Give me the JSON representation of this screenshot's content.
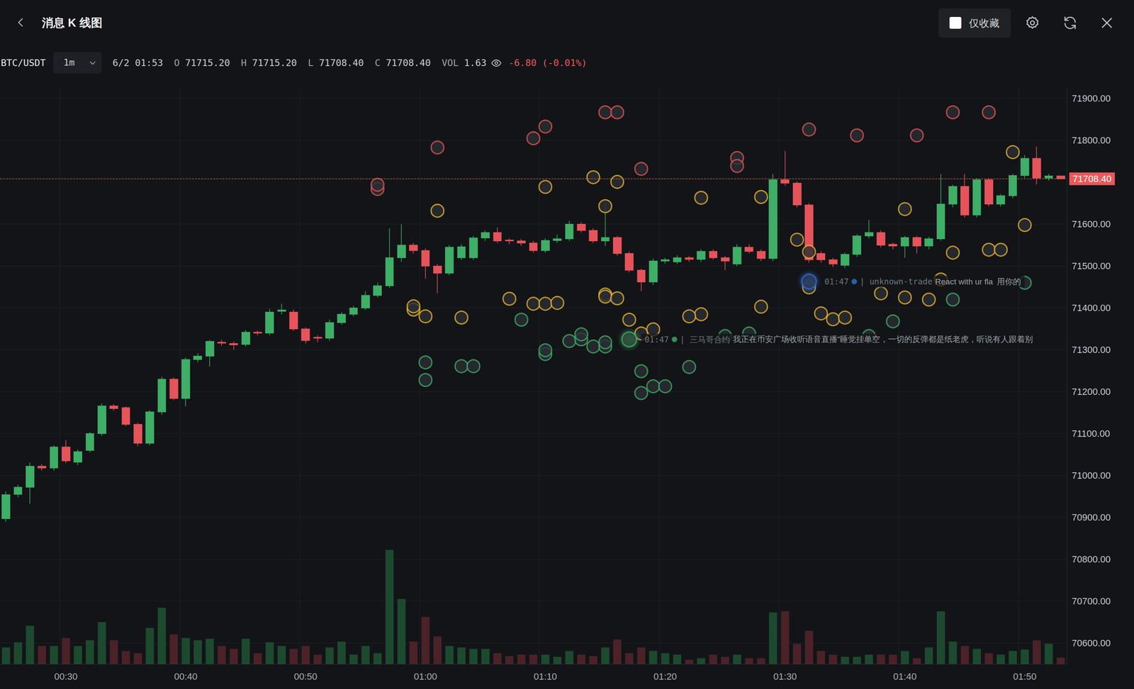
{
  "header": {
    "title": "消息 K 线图",
    "checkbox_label": "仅收藏"
  },
  "info": {
    "symbol": "BTC/USDT",
    "interval": "1m",
    "time": "6/2 01:53",
    "fields": [
      {
        "key": "O",
        "value": "71715.20"
      },
      {
        "key": "H",
        "value": "71715.20"
      },
      {
        "key": "L",
        "value": "71708.40"
      },
      {
        "key": "C",
        "value": "71708.40"
      },
      {
        "key": "VOL",
        "value": "1.63"
      }
    ],
    "change": "-6.80 (-0.01%)"
  },
  "chart_data": {
    "type": "candlestick",
    "categories": [
      null,
      null,
      null,
      null,
      null,
      "00:30",
      null,
      null,
      null,
      null,
      null,
      null,
      null,
      null,
      null,
      "00:40",
      null,
      null,
      null,
      null,
      null,
      null,
      null,
      null,
      null,
      "00:50",
      null,
      null,
      null,
      null,
      null,
      null,
      null,
      null,
      null,
      "01:00",
      null,
      null,
      null,
      null,
      null,
      null,
      null,
      null,
      null,
      "01:10",
      null,
      null,
      null,
      null,
      null,
      null,
      null,
      null,
      null,
      "01:20",
      null,
      null,
      null,
      null,
      null,
      null,
      null,
      null,
      null,
      "01:30",
      null,
      null,
      null,
      null,
      null,
      null,
      null,
      null,
      null,
      "01:40",
      null,
      null,
      null,
      null,
      null,
      null,
      null,
      null,
      null,
      "01:50",
      null,
      null,
      null
    ],
    "ylim": [
      70550,
      71925
    ],
    "yticks": [
      {
        "value": 70600,
        "label": "70600.00"
      },
      {
        "value": 70700,
        "label": "70700.00"
      },
      {
        "value": 70800,
        "label": "70800.00"
      },
      {
        "value": 70900,
        "label": "70900.00"
      },
      {
        "value": 71000,
        "label": "71000.00"
      },
      {
        "value": 71100,
        "label": "71100.00"
      },
      {
        "value": 71200,
        "label": "71200.00"
      },
      {
        "value": 71300,
        "label": "71300.00"
      },
      {
        "value": 71400,
        "label": "71400.00"
      },
      {
        "value": 71500,
        "label": "71500.00"
      },
      {
        "value": 71600,
        "label": "71600.00"
      },
      {
        "value": 71800,
        "label": "71800.00"
      },
      {
        "value": 71900,
        "label": "71900.00"
      }
    ],
    "y2lim": [
      0,
      30
    ],
    "grid": true,
    "last_price": {
      "value": 71708.4,
      "label": "71708.40"
    },
    "last_volume": {
      "value": 1.63,
      "label": "1.63"
    },
    "series": [
      {
        "type": "candlestick",
        "colors": [
          "#3fae66",
          "#e5545a"
        ],
        "values": [
          [
            70897,
            70962,
            70890,
            70954
          ],
          [
            70955,
            70978,
            70948,
            70972
          ],
          [
            70972,
            71031,
            70933,
            71022
          ],
          [
            71022,
            71027,
            71012,
            71018
          ],
          [
            71018,
            71072,
            71012,
            71068
          ],
          [
            71068,
            71085,
            71030,
            71035
          ],
          [
            71032,
            71062,
            71025,
            71057
          ],
          [
            71060,
            71104,
            71055,
            71100
          ],
          [
            71100,
            71172,
            71095,
            71166
          ],
          [
            71166,
            71170,
            71155,
            71160
          ],
          [
            71162,
            71165,
            71118,
            71122
          ],
          [
            71122,
            71126,
            71070,
            71077
          ],
          [
            71077,
            71156,
            71072,
            71152
          ],
          [
            71152,
            71236,
            71145,
            71230
          ],
          [
            71230,
            71234,
            71180,
            71184
          ],
          [
            71184,
            71282,
            71165,
            71277
          ],
          [
            71277,
            71292,
            71270,
            71285
          ],
          [
            71285,
            71324,
            71260,
            71320
          ],
          [
            71318,
            71324,
            71310,
            71316
          ],
          [
            71315,
            71320,
            71300,
            71312
          ],
          [
            71313,
            71347,
            71308,
            71342
          ],
          [
            71342,
            71346,
            71335,
            71340
          ],
          [
            71340,
            71398,
            71335,
            71390
          ],
          [
            71392,
            71410,
            71385,
            71395
          ],
          [
            71390,
            71396,
            71345,
            71350
          ],
          [
            71350,
            71354,
            71315,
            71322
          ],
          [
            71330,
            71335,
            71318,
            71328
          ],
          [
            71328,
            71372,
            71322,
            71365
          ],
          [
            71365,
            71390,
            71360,
            71385
          ],
          [
            71385,
            71405,
            71380,
            71400
          ],
          [
            71400,
            71440,
            71395,
            71430
          ],
          [
            71430,
            71460,
            71425,
            71453
          ],
          [
            71453,
            71590,
            71448,
            71520
          ],
          [
            71520,
            71600,
            71510,
            71550
          ],
          [
            71550,
            71555,
            71530,
            71537
          ],
          [
            71537,
            71542,
            71470,
            71500
          ],
          [
            71500,
            71505,
            71435,
            71483
          ],
          [
            71483,
            71550,
            71478,
            71545
          ],
          [
            71520,
            71552,
            71515,
            71546
          ],
          [
            71520,
            71572,
            71515,
            71567
          ],
          [
            71567,
            71585,
            71560,
            71580
          ],
          [
            71580,
            71592,
            71555,
            71560
          ],
          [
            71562,
            71566,
            71552,
            71560
          ],
          [
            71560,
            71565,
            71548,
            71555
          ],
          [
            71555,
            71560,
            71532,
            71537
          ],
          [
            71537,
            71566,
            71532,
            71561
          ],
          [
            71561,
            71575,
            71555,
            71565
          ],
          [
            71565,
            71608,
            71560,
            71600
          ],
          [
            71600,
            71605,
            71580,
            71585
          ],
          [
            71585,
            71590,
            71555,
            71560
          ],
          [
            71560,
            71650,
            71548,
            71568
          ],
          [
            71568,
            71572,
            71525,
            71530
          ],
          [
            71530,
            71535,
            71485,
            71490
          ],
          [
            71490,
            71494,
            71440,
            71462
          ],
          [
            71462,
            71518,
            71455,
            71512
          ],
          [
            71512,
            71520,
            71506,
            71515
          ],
          [
            71510,
            71526,
            71505,
            71520
          ],
          [
            71520,
            71524,
            71510,
            71516
          ],
          [
            71516,
            71540,
            71510,
            71535
          ],
          [
            71535,
            71540,
            71515,
            71520
          ],
          [
            71520,
            71524,
            71490,
            71512
          ],
          [
            71505,
            71552,
            71500,
            71545
          ],
          [
            71545,
            71552,
            71530,
            71535
          ],
          [
            71535,
            71540,
            71512,
            71518
          ],
          [
            71518,
            71720,
            71512,
            71706
          ],
          [
            71706,
            71775,
            71692,
            71698
          ],
          [
            71698,
            71702,
            71640,
            71646
          ],
          [
            71646,
            71650,
            71508,
            71515
          ],
          [
            71530,
            71535,
            71508,
            71515
          ],
          [
            71515,
            71520,
            71498,
            71505
          ],
          [
            71502,
            71532,
            71495,
            71528
          ],
          [
            71528,
            71576,
            71522,
            71572
          ],
          [
            71572,
            71610,
            71566,
            71580
          ],
          [
            71580,
            71585,
            71545,
            71550
          ],
          [
            71552,
            71556,
            71540,
            71548
          ],
          [
            71548,
            71572,
            71520,
            71568
          ],
          [
            71568,
            71572,
            71530,
            71548
          ],
          [
            71548,
            71570,
            71540,
            71565
          ],
          [
            71565,
            71720,
            71560,
            71648
          ],
          [
            71648,
            71694,
            71640,
            71690
          ],
          [
            71690,
            71720,
            71616,
            71622
          ],
          [
            71622,
            71710,
            71616,
            71706
          ],
          [
            71706,
            71710,
            71642,
            71648
          ],
          [
            71648,
            71672,
            71642,
            71668
          ],
          [
            71668,
            71720,
            71662,
            71716
          ],
          [
            71716,
            71765,
            71710,
            71757
          ],
          [
            71757,
            71785,
            71695,
            71710
          ],
          [
            71710,
            71720,
            71704,
            71715
          ],
          [
            71715.2,
            71715.2,
            71708.4,
            71708.4
          ]
        ]
      },
      {
        "type": "bar",
        "axis": "y2",
        "colors": [
          "#1d4a2e",
          "#4a2227"
        ],
        "values": [
          4.16,
          5.43,
          9.59,
          4.53,
          4.53,
          6.52,
          4.53,
          5.97,
          10.5,
          5.97,
          3.26,
          2.72,
          9.05,
          14.1,
          7.42,
          6.52,
          5.97,
          6.34,
          4.53,
          3.8,
          6.34,
          2.72,
          5.43,
          4.53,
          3.8,
          4.53,
          2.35,
          4.16,
          5.61,
          2.35,
          4.53,
          2.72,
          28.6,
          16.3,
          5.61,
          11.8,
          6.88,
          4.53,
          4.16,
          3.8,
          3.8,
          2.72,
          1.99,
          2.35,
          2.35,
          2.35,
          1.81,
          3.26,
          2.35,
          1.99,
          4.16,
          6.15,
          2.72,
          4.16,
          3.26,
          2.72,
          2.35,
          1.09,
          1.45,
          2.35,
          1.81,
          2.35,
          1.45,
          1.45,
          12.9,
          13.2,
          5.07,
          8.33,
          3.26,
          2.35,
          1.81,
          1.81,
          2.35,
          2.35,
          2.35,
          3.26,
          1.45,
          4.16,
          13.2,
          5.61,
          4.53,
          3.8,
          2.72,
          2.35,
          3.26,
          3.62,
          5.97,
          5.07,
          1.63
        ]
      },
      {
        "type": "scatter",
        "color": "#e05555",
        "x": [
          31,
          31,
          36,
          44,
          45,
          50,
          51,
          53,
          61,
          61,
          67,
          71,
          76,
          79,
          82
        ],
        "values": [
          71684,
          71694,
          71783,
          71805,
          71833,
          71867,
          71867,
          71732,
          71758,
          71739,
          71826,
          71812,
          71812,
          71867,
          71867
        ]
      },
      {
        "type": "scatter",
        "color": "#e8b430",
        "x": [
          45,
          51,
          36,
          50,
          58,
          63,
          66,
          67,
          75,
          79,
          82,
          83,
          84,
          67,
          78,
          73,
          75,
          77,
          68,
          69,
          70,
          63,
          58,
          57,
          52,
          53,
          54,
          50,
          50,
          51,
          42,
          44,
          45,
          46,
          34,
          34,
          35,
          38,
          49,
          85
        ],
        "values": [
          71689,
          71701,
          71632,
          71643,
          71663,
          71665,
          71563,
          71534,
          71636,
          71532,
          71539,
          71539,
          71772,
          71449,
          71468,
          71435,
          71425,
          71420,
          71387,
          71373,
          71377,
          71403,
          71385,
          71380,
          71372,
          71339,
          71349,
          71432,
          71427,
          71423,
          71422,
          71410,
          71410,
          71412,
          71396,
          71404,
          71380,
          71377,
          71712,
          71598
        ]
      },
      {
        "type": "scatter",
        "color": "#3fae66",
        "x": [
          43,
          35,
          35,
          38,
          39,
          45,
          45,
          47,
          48,
          48,
          49,
          50,
          50,
          53,
          53,
          54,
          55,
          57,
          60,
          62,
          72,
          74,
          79,
          85
        ],
        "values": [
          71372,
          71270,
          71228,
          71261,
          71261,
          71290,
          71299,
          71321,
          71325,
          71337,
          71308,
          71308,
          71318,
          71249,
          71197,
          71213,
          71213,
          71259,
          71333,
          71339,
          71333,
          71368,
          71420,
          71460
        ]
      }
    ],
    "annotations": [
      {
        "x": 67,
        "y": 71463,
        "time": "01:47",
        "user": "| unknown-trade",
        "text": "React with ur fla",
        "tail": "用你的",
        "color": "#2f6fd0"
      },
      {
        "x": 52,
        "y": 71325,
        "time": "01:47",
        "user": "| 三马哥合约",
        "text": "我正在币安广场收听语音直播“睡觉挂单空，一切的反弹都是纸老虎，听说有人跟着别",
        "color": "#3fae66"
      }
    ]
  }
}
